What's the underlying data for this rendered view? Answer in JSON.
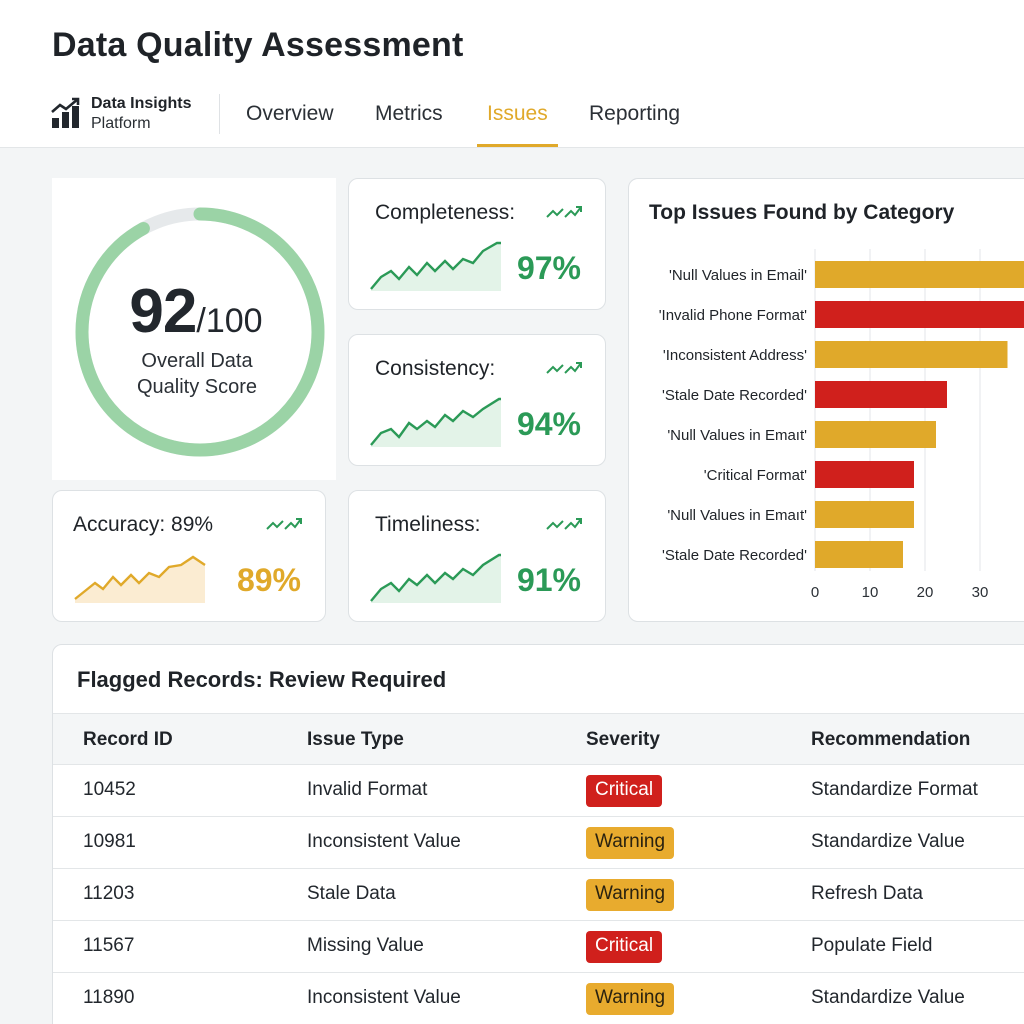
{
  "header": {
    "title": "Data Quality Assessment"
  },
  "brand": {
    "name": "Data Insights",
    "sub": "Platform"
  },
  "nav": {
    "tabs": [
      "Overview",
      "Metrics",
      "Issues",
      "Reporting"
    ],
    "active": "Issues"
  },
  "score": {
    "value": "92",
    "max": "/100",
    "label_line1": "Overall Data",
    "label_line2": "Quality Score",
    "fraction": 0.92
  },
  "metrics": [
    {
      "title": "Completeness:",
      "value": "97%",
      "tone": "green"
    },
    {
      "title": "Consistency:",
      "value": "94%",
      "tone": "green"
    },
    {
      "title": "Accuracy: 89%",
      "value": "89%",
      "tone": "amber"
    },
    {
      "title": "Timeliness:",
      "value": "91%",
      "tone": "green"
    }
  ],
  "colors": {
    "green": "#2b9a57",
    "amber": "#e0a92a",
    "critical": "#d0201c",
    "ring": "#9bd3a6",
    "ring_track": "#e6e9eb"
  },
  "icons": {
    "trend": "trending-up-icon",
    "brand": "bar-chart-icon"
  },
  "chart_data": {
    "type": "bar",
    "orientation": "horizontal",
    "title": "Top Issues Found by Category",
    "categories": [
      "'Null Values in Email'",
      "'Invalid Phone Format'",
      "'Inconsistent Address'",
      "'Stale Date Recorded'",
      "'Null Values in Emaıt'",
      "'Critical Format'",
      "'Null Values in Emaıt'",
      "'Stale Date Recorded'"
    ],
    "values": [
      38,
      40,
      35,
      24,
      22,
      18,
      18,
      16
    ],
    "severity": [
      "warning",
      "critical",
      "warning",
      "critical",
      "warning",
      "critical",
      "warning",
      "warning"
    ],
    "xticks": [
      0,
      10,
      20,
      30
    ],
    "xlim": [
      0,
      40
    ],
    "grid": true
  },
  "table": {
    "title": "Flagged Records: Review Required",
    "columns": [
      "Record ID",
      "Issue Type",
      "Severity",
      "Recommendation"
    ],
    "rows": [
      {
        "id": "10452",
        "issue": "Invalid Format",
        "severity": "Critical",
        "rec": "Standardize Format"
      },
      {
        "id": "10981",
        "issue": "Inconsistent Value",
        "severity": "Warning",
        "rec": "Standardize Value"
      },
      {
        "id": "11203",
        "issue": "Stale Data",
        "severity": "Warning",
        "rec": "Refresh Data"
      },
      {
        "id": "11567",
        "issue": "Missing Value",
        "severity": "Critical",
        "rec": "Populate Field"
      },
      {
        "id": "11890",
        "issue": "Inconsistent Value",
        "severity": "Warning",
        "rec": "Standardize Value"
      }
    ]
  }
}
